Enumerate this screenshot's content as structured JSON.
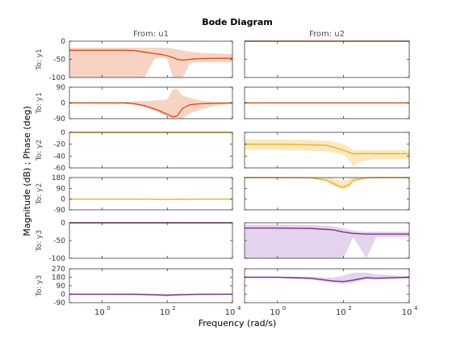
{
  "chart_data": {
    "type": "line",
    "title": "Bode Diagram",
    "xlabel": "Frequency  (rad/s)",
    "ylabel": "Magnitude (dB) ; Phase (deg)",
    "xscale": "log",
    "xlim": [
      0.1,
      10000
    ],
    "x_tick_values": [
      1,
      100,
      10000
    ],
    "x_tick_labels": [
      {
        "base": "10",
        "exp": "0"
      },
      {
        "base": "10",
        "exp": "2"
      },
      {
        "base": "10",
        "exp": "4"
      }
    ],
    "columns": [
      "From: u1",
      "From: u2"
    ],
    "row_labels": [
      "To: y1",
      "To: y1",
      "To: y2",
      "To: y2",
      "To: y3",
      "To: y3"
    ],
    "grid": false,
    "rows": [
      {
        "kind": "magnitude",
        "ylim": [
          -100,
          0
        ],
        "yticks": [
          0,
          -50,
          -100
        ],
        "ytick_labels": [
          "0",
          "-50",
          "-100"
        ],
        "line_color": "#d95319",
        "band_color": "#f7d3c4",
        "cells": [
          {
            "x": [
              0.1,
              1,
              5,
              10,
              20,
              40,
              60,
              100,
              150,
              200,
              300,
              500,
              1000,
              3000,
              10000
            ],
            "y": [
              -25,
              -25,
              -25,
              -26,
              -30,
              -34,
              -36,
              -40,
              -45,
              -50,
              -52,
              -50,
              -48,
              -47,
              -47
            ],
            "upper": [
              -18,
              -18,
              -18,
              -18,
              -18,
              -18,
              -18,
              -18,
              -20,
              -22,
              -25,
              -30,
              -32,
              -34,
              -35
            ],
            "lower": [
              -100,
              -100,
              -100,
              -100,
              -100,
              -50,
              -45,
              -48,
              -100,
              -100,
              -100,
              -60,
              -58,
              -58,
              -58
            ]
          },
          {
            "x": [
              0.1,
              1,
              10,
              100,
              1000,
              10000
            ],
            "y": [
              0,
              0,
              0,
              0,
              0,
              0
            ],
            "upper": [
              1,
              1,
              1,
              1,
              1,
              1
            ],
            "lower": [
              -1,
              -1,
              -1,
              -1,
              -1,
              -1
            ]
          }
        ]
      },
      {
        "kind": "phase",
        "ylim": [
          -90,
          90
        ],
        "yticks": [
          90,
          0,
          -90
        ],
        "ytick_labels": [
          "90",
          "0",
          "-90"
        ],
        "line_color": "#d95319",
        "band_color": "#f7d3c4",
        "cells": [
          {
            "x": [
              0.1,
              1,
              5,
              10,
              20,
              50,
              100,
              150,
              200,
              300,
              500,
              1000,
              3000,
              10000
            ],
            "y": [
              0,
              0,
              0,
              -5,
              -15,
              -40,
              -65,
              -80,
              -75,
              -30,
              -10,
              -5,
              -2,
              0
            ],
            "upper": [
              3,
              3,
              5,
              10,
              10,
              15,
              20,
              80,
              80,
              40,
              30,
              15,
              5,
              3
            ],
            "lower": [
              -3,
              -3,
              -5,
              -12,
              -25,
              -50,
              -80,
              -100,
              -100,
              -90,
              -60,
              -40,
              -15,
              -5
            ]
          },
          {
            "x": [
              0.1,
              1,
              10,
              100,
              1000,
              10000
            ],
            "y": [
              0,
              0,
              0,
              0,
              0,
              0
            ],
            "upper": [
              2,
              2,
              2,
              2,
              2,
              2
            ],
            "lower": [
              -2,
              -2,
              -2,
              -2,
              -2,
              -2
            ]
          }
        ]
      },
      {
        "kind": "magnitude",
        "ylim": [
          -60,
          0
        ],
        "yticks": [
          0,
          -20,
          -40,
          -60
        ],
        "ytick_labels": [
          "0",
          "-20",
          "-40",
          "-60"
        ],
        "line_color": "#edb120",
        "band_color": "#fbe8bd",
        "cells": [
          {
            "x": [
              0.1,
              1,
              10,
              100,
              1000,
              10000
            ],
            "y": [
              0,
              0,
              0,
              0,
              0,
              0
            ],
            "upper": [
              1,
              1,
              1,
              1,
              1,
              1
            ],
            "lower": [
              -1,
              -1,
              -1,
              -1,
              -1,
              -1
            ]
          },
          {
            "x": [
              0.1,
              1,
              10,
              30,
              50,
              100,
              150,
              200,
              300,
              1000,
              10000
            ],
            "y": [
              -20,
              -20,
              -21,
              -22,
              -25,
              -30,
              -34,
              -36,
              -36,
              -36,
              -36
            ],
            "upper": [
              -12,
              -12,
              -13,
              -14,
              -16,
              -20,
              -25,
              -30,
              -30,
              -30,
              -30
            ],
            "lower": [
              -30,
              -30,
              -31,
              -32,
              -34,
              -38,
              -48,
              -58,
              -50,
              -45,
              -45
            ]
          }
        ]
      },
      {
        "kind": "phase",
        "ylim": [
          -90,
          180
        ],
        "yticks": [
          180,
          90,
          0,
          -90
        ],
        "ytick_labels": [
          "180",
          "90",
          "0",
          "-90"
        ],
        "line_color": "#edb120",
        "band_color": "#fbe8bd",
        "cells": [
          {
            "x": [
              0.1,
              1,
              10,
              30,
              100,
              300,
              1000,
              10000
            ],
            "y": [
              0,
              0,
              0,
              -1,
              -3,
              -2,
              0,
              0
            ],
            "upper": [
              1,
              1,
              1,
              1,
              1,
              1,
              1,
              1
            ],
            "lower": [
              -1,
              -1,
              -1,
              -1,
              -1,
              -1,
              -1,
              -1
            ]
          },
          {
            "x": [
              0.1,
              1,
              10,
              30,
              50,
              80,
              100,
              150,
              200,
              500,
              1000,
              10000
            ],
            "y": [
              180,
              180,
              178,
              160,
              130,
              105,
              100,
              120,
              160,
              178,
              180,
              180
            ],
            "upper": [
              186,
              186,
              186,
              180,
              175,
              155,
              150,
              170,
              186,
              186,
              186,
              186
            ],
            "lower": [
              174,
              174,
              172,
              150,
              110,
              85,
              82,
              95,
              140,
              170,
              174,
              174
            ]
          }
        ]
      },
      {
        "kind": "magnitude",
        "ylim": [
          -100,
          0
        ],
        "yticks": [
          0,
          -50,
          -100
        ],
        "ytick_labels": [
          "0",
          "-50",
          "-100"
        ],
        "line_color": "#7e2f8e",
        "band_color": "#e4d3ec",
        "cells": [
          {
            "x": [
              0.1,
              1,
              10,
              100,
              1000,
              10000
            ],
            "y": [
              0,
              0,
              0,
              0,
              0,
              0
            ],
            "upper": [
              2,
              2,
              2,
              2,
              2,
              2
            ],
            "lower": [
              -2,
              -2,
              -2,
              -2,
              -2,
              -2
            ]
          },
          {
            "x": [
              0.1,
              1,
              10,
              50,
              100,
              200,
              500,
              1000,
              10000
            ],
            "y": [
              -15,
              -15,
              -16,
              -20,
              -26,
              -30,
              -32,
              -32,
              -32
            ],
            "upper": [
              -5,
              -5,
              -6,
              -10,
              -15,
              -22,
              -25,
              -25,
              -25
            ],
            "lower": [
              -100,
              -100,
              -100,
              -100,
              -100,
              -40,
              -100,
              -40,
              -40
            ]
          }
        ]
      },
      {
        "kind": "phase",
        "ylim": [
          -90,
          270
        ],
        "yticks": [
          270,
          180,
          90,
          0,
          -90
        ],
        "ytick_labels": [
          "270",
          "180",
          "90",
          "0",
          "-90"
        ],
        "line_color": "#7e2f8e",
        "band_color": "#e4d3ec",
        "cells": [
          {
            "x": [
              0.1,
              1,
              10,
              30,
              100,
              300,
              1000,
              10000
            ],
            "y": [
              0,
              0,
              0,
              -5,
              -10,
              -5,
              0,
              0
            ],
            "upper": [
              3,
              3,
              5,
              5,
              5,
              5,
              3,
              3
            ],
            "lower": [
              -3,
              -3,
              -8,
              -15,
              -25,
              -15,
              -5,
              -3
            ]
          },
          {
            "x": [
              0.1,
              1,
              10,
              50,
              100,
              200,
              500,
              1000,
              10000
            ],
            "y": [
              180,
              180,
              170,
              140,
              135,
              150,
              175,
              170,
              180
            ],
            "upper": [
              185,
              185,
              185,
              175,
              200,
              230,
              230,
              210,
              190
            ],
            "lower": [
              175,
              175,
              155,
              120,
              110,
              120,
              160,
              155,
              170
            ]
          }
        ]
      }
    ]
  }
}
